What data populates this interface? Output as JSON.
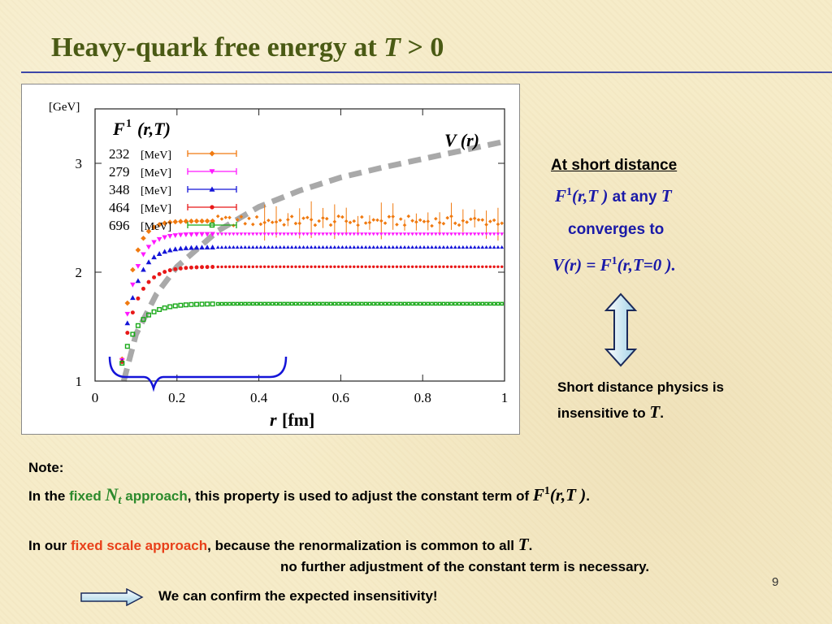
{
  "slide": {
    "title_prefix": "Heavy-quark free energy at ",
    "title_var": "T",
    "title_suffix": " > 0",
    "page_number": "9"
  },
  "side": {
    "heading": "At short distance",
    "line1_F": "F",
    "line1_sup": "1",
    "line1_args": "(r,T )",
    "line1_text": " at any ",
    "line1_T": "T",
    "line2": "converges to",
    "line3_V": "V",
    "line3_rest": "(r) = ",
    "line3_F": "F",
    "line3_sup": "1",
    "line3_args": "(r,T=0 ).",
    "insensitive_line1": "Short distance physics is",
    "insensitive_line2_prefix": "insensitive to ",
    "insensitive_line2_T": "T",
    "insensitive_line2_suffix": "."
  },
  "notes": {
    "label": "Note:",
    "line1_prefix": "In the ",
    "line1_fixed": "fixed ",
    "line1_N": "N",
    "line1_t": "t",
    "line1_approach": " approach",
    "line1_mid": ", this property is used to adjust the constant term of ",
    "line1_F": "F",
    "line1_sup": "1",
    "line1_args": "(r,T )",
    "line1_end": ".",
    "line2_prefix": "In our ",
    "line2_fixed": "fixed scale approach",
    "line2_mid": ", because the renormalization is common to all ",
    "line2_T": "T",
    "line2_end": ".",
    "line3": "no further adjustment of the constant term is necessary.",
    "line4": "We can confirm the expected insensitivity!"
  },
  "colors": {
    "title": "#4a5a14",
    "accent_blue": "#1a1aa8",
    "green": "#2c8a2c",
    "red": "#e8401a",
    "rule": "#3d47a8"
  },
  "chart_data": {
    "type": "scatter",
    "ylabel_unit": "[GeV]",
    "xlabel_var": "r",
    "xlabel_unit": "[fm]",
    "plot_label_F": "F",
    "plot_label_sup": "1",
    "plot_label_args": "(r,T)",
    "curve_label": "V (r)",
    "xlim": [
      0,
      1
    ],
    "ylim": [
      1,
      3.5
    ],
    "x_ticks": [
      "0",
      "0.2",
      "0.4",
      "0.6",
      "0.8",
      "1"
    ],
    "y_ticks": [
      "1",
      "2",
      "3"
    ],
    "legend_placement": "top-left",
    "series": [
      {
        "name": "232",
        "unit": "[MeV]",
        "color": "#f07a10",
        "marker": "diamond",
        "plateau": 2.47,
        "noisy": true
      },
      {
        "name": "279",
        "unit": "[MeV]",
        "color": "#ff18ff",
        "marker": "triangle-down",
        "plateau": 2.35,
        "noisy": false
      },
      {
        "name": "348",
        "unit": "[MeV]",
        "color": "#1414d8",
        "marker": "triangle-up",
        "plateau": 2.23,
        "noisy": false
      },
      {
        "name": "464",
        "unit": "[MeV]",
        "color": "#e81818",
        "marker": "circle",
        "plateau": 2.05,
        "noisy": false
      },
      {
        "name": "696",
        "unit": "[MeV]",
        "color": "#18a818",
        "marker": "square",
        "plateau": 1.71,
        "noisy": false
      }
    ],
    "potential": {
      "name": "V (r)",
      "color": "#a9a9a9",
      "x": [
        0.07,
        0.1,
        0.15,
        0.2,
        0.3,
        0.4,
        0.5,
        0.6,
        0.7,
        0.8,
        0.9,
        1.0
      ],
      "y": [
        1.0,
        1.43,
        1.8,
        2.05,
        2.38,
        2.6,
        2.75,
        2.87,
        2.96,
        3.04,
        3.12,
        3.2
      ]
    }
  }
}
